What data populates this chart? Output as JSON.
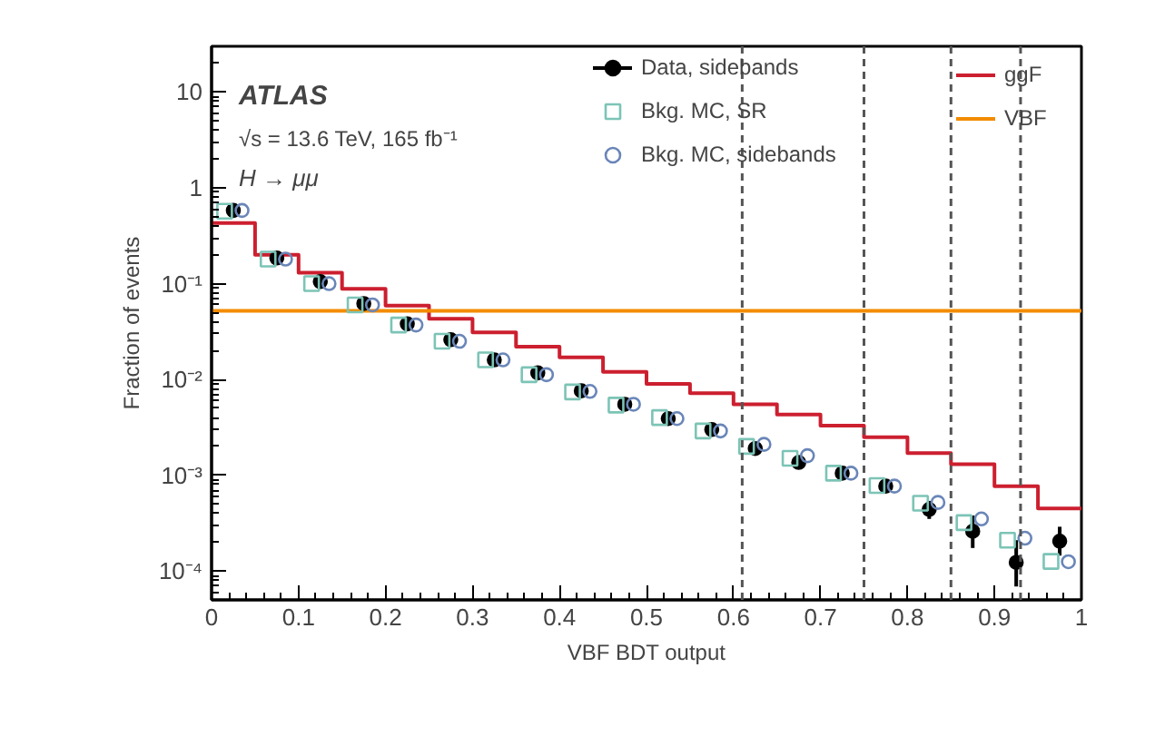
{
  "chart_data": {
    "type": "scatter",
    "xlabel": "VBF BDT output",
    "ylabel": "Fraction of events",
    "annotations": [
      "ATLAS",
      "√s = 13.6 TeV, 165 fb⁻¹",
      "H → μμ"
    ],
    "log": "y",
    "grid": false,
    "legend": "top right",
    "xlim": [
      0,
      1
    ],
    "xticks": [
      0,
      0.1,
      0.2,
      0.3,
      0.4,
      0.5,
      0.6,
      0.7,
      0.8,
      0.9,
      1
    ],
    "ylim": [
      5e-05,
      30
    ],
    "yticks": [
      {
        "value": 0.0001,
        "label": "10⁻⁴"
      },
      {
        "value": 0.001,
        "label": "10⁻³"
      },
      {
        "value": 0.01,
        "label": "10⁻²"
      },
      {
        "value": 0.1,
        "label": "10⁻¹"
      },
      1,
      10
    ],
    "series": [
      {
        "name": "Data, sidebands",
        "marker": "circle",
        "color": "#000000",
        "x": [
          0.025,
          0.075,
          0.125,
          0.175,
          0.225,
          0.275,
          0.325,
          0.375,
          0.425,
          0.475,
          0.525,
          0.575,
          0.625,
          0.675,
          0.725,
          0.775,
          0.825,
          0.875,
          0.925,
          0.975
        ],
        "values": [
          0.58,
          0.185,
          0.105,
          0.062,
          0.038,
          0.026,
          0.016,
          0.0117,
          0.0076,
          0.0055,
          0.0039,
          0.003,
          0.0019,
          0.00136,
          0.00105,
          0.00077,
          0.00044,
          0.00026,
          0.000123,
          0.000205
        ],
        "errors": [
          null,
          null,
          null,
          null,
          null,
          null,
          null,
          null,
          null,
          null,
          null,
          null,
          null,
          null,
          null,
          null,
          [
            0.00035,
            0.00054
          ],
          [
            0.000174,
            0.00038
          ],
          [
            6.9e-05,
            0.00021
          ],
          [
            0.000145,
            0.00029
          ]
        ]
      },
      {
        "name": "Bkg. MC, SR",
        "marker": "square",
        "color": "#7cc4b6",
        "x": [
          0.015,
          0.065,
          0.115,
          0.165,
          0.215,
          0.265,
          0.315,
          0.365,
          0.415,
          0.465,
          0.515,
          0.565,
          0.615,
          0.665,
          0.715,
          0.765,
          0.815,
          0.865,
          0.915,
          0.965
        ],
        "values": [
          0.57,
          0.18,
          0.1,
          0.06,
          0.037,
          0.025,
          0.016,
          0.0112,
          0.0074,
          0.0054,
          0.004,
          0.0029,
          0.002,
          0.0015,
          0.00105,
          0.00078,
          0.00051,
          0.00032,
          0.00021,
          0.000126
        ]
      },
      {
        "name": "Bkg. MC, sidebands",
        "marker": "circle_open",
        "color": "#6a86b8",
        "x": [
          0.035,
          0.085,
          0.135,
          0.185,
          0.235,
          0.285,
          0.335,
          0.385,
          0.435,
          0.485,
          0.535,
          0.585,
          0.635,
          0.685,
          0.735,
          0.785,
          0.835,
          0.885,
          0.935,
          0.985
        ],
        "values": [
          0.58,
          0.18,
          0.1,
          0.06,
          0.037,
          0.025,
          0.016,
          0.0112,
          0.0075,
          0.0055,
          0.0039,
          0.0029,
          0.0021,
          0.0016,
          0.00105,
          0.00077,
          0.00052,
          0.00035,
          0.00022,
          0.000125
        ]
      },
      {
        "name": "ggF",
        "type": "histogram",
        "color": "#cc1f2f",
        "bins": [
          0,
          0.05,
          0.1,
          0.15,
          0.2,
          0.25,
          0.3,
          0.35,
          0.4,
          0.45,
          0.5,
          0.55,
          0.6,
          0.65,
          0.7,
          0.75,
          0.8,
          0.85,
          0.9,
          0.95,
          1
        ],
        "values": [
          0.43,
          0.2,
          0.13,
          0.088,
          0.059,
          0.043,
          0.031,
          0.022,
          0.017,
          0.012,
          0.009,
          0.0072,
          0.0055,
          0.0043,
          0.0033,
          0.0025,
          0.0017,
          0.0013,
          0.00077,
          0.00045
        ]
      },
      {
        "name": "VBF",
        "type": "line",
        "color": "#f28c00",
        "x": [
          0,
          1
        ],
        "values": [
          0.052,
          0.052
        ]
      }
    ],
    "ref_lines": [
      {
        "axis": "x",
        "value": 0.61,
        "color": "#555555",
        "line_style": "dashed"
      },
      {
        "axis": "x",
        "value": 0.75,
        "color": "#555555",
        "line_style": "dashed"
      },
      {
        "axis": "x",
        "value": 0.85,
        "color": "#555555",
        "line_style": "dashed"
      },
      {
        "axis": "x",
        "value": 0.93,
        "color": "#555555",
        "line_style": "dashed"
      }
    ]
  }
}
